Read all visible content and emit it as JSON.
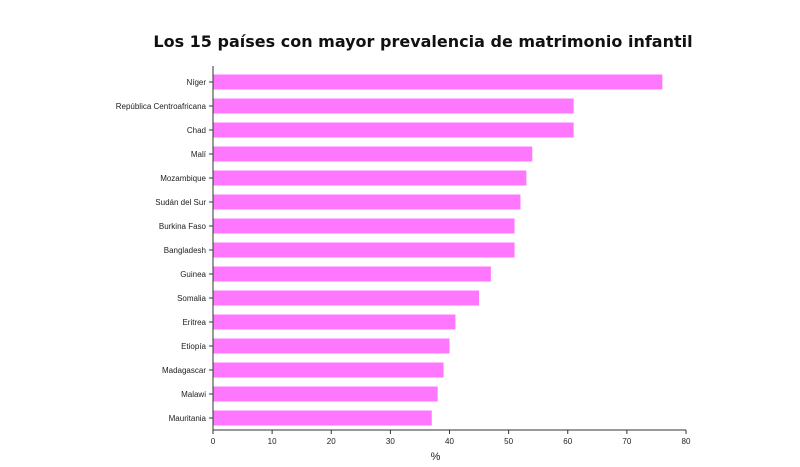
{
  "chart_data": {
    "type": "bar",
    "orientation": "horizontal",
    "title": "Los 15 países con mayor prevalencia de matrimonio infantil",
    "xlabel": "%",
    "ylabel": "",
    "xlim": [
      0,
      80
    ],
    "xticks": [
      0,
      10,
      20,
      30,
      40,
      50,
      60,
      70,
      80
    ],
    "grid": false,
    "bar_color": "#ff77ff",
    "categories": [
      "Níger",
      "República Centroafricana",
      "Chad",
      "Malí",
      "Mozambique",
      "Sudán del Sur",
      "Burkina Faso",
      "Bangladesh",
      "Guinea",
      "Somalia",
      "Eritrea",
      "Etiopía",
      "Madagascar",
      "Malawi",
      "Mauritania"
    ],
    "values": [
      76,
      61,
      61,
      54,
      53,
      52,
      51,
      51,
      47,
      45,
      41,
      40,
      39,
      38,
      37
    ]
  }
}
